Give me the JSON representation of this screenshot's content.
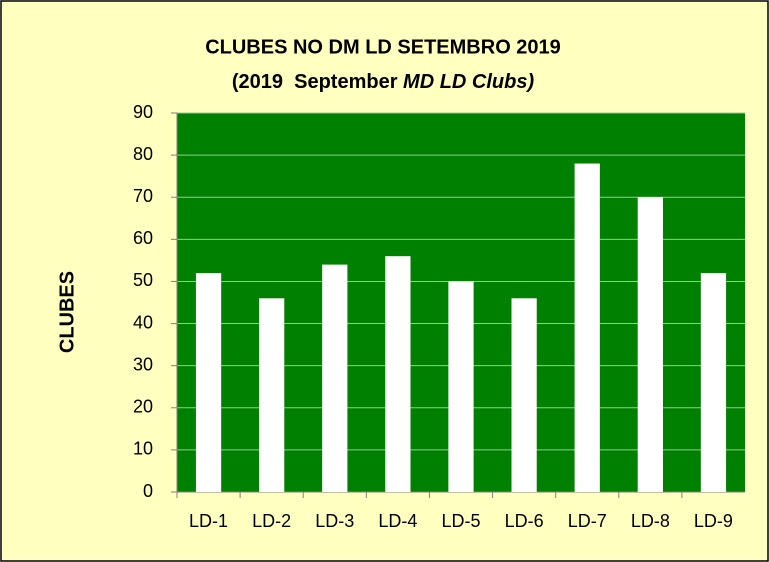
{
  "chart_data": {
    "type": "bar",
    "title": "CLUBES NO DM LD SETEMBRO 2019",
    "subtitle": [
      "(2019  September ",
      "MD LD Clubs)"
    ],
    "ylabel": "CLUBES",
    "categories": [
      "LD-1",
      "LD-2",
      "LD-3",
      "LD-4",
      "LD-5",
      "LD-6",
      "LD-7",
      "LD-8",
      "LD-9"
    ],
    "values": [
      52,
      46,
      54,
      56,
      50,
      46,
      78,
      70,
      52
    ],
    "color": "#ffffff",
    "plot_background": "#008000",
    "ylim": [
      0,
      90
    ],
    "yticks": [
      0,
      10,
      20,
      30,
      40,
      50,
      60,
      70,
      80,
      90
    ],
    "grid": true
  }
}
